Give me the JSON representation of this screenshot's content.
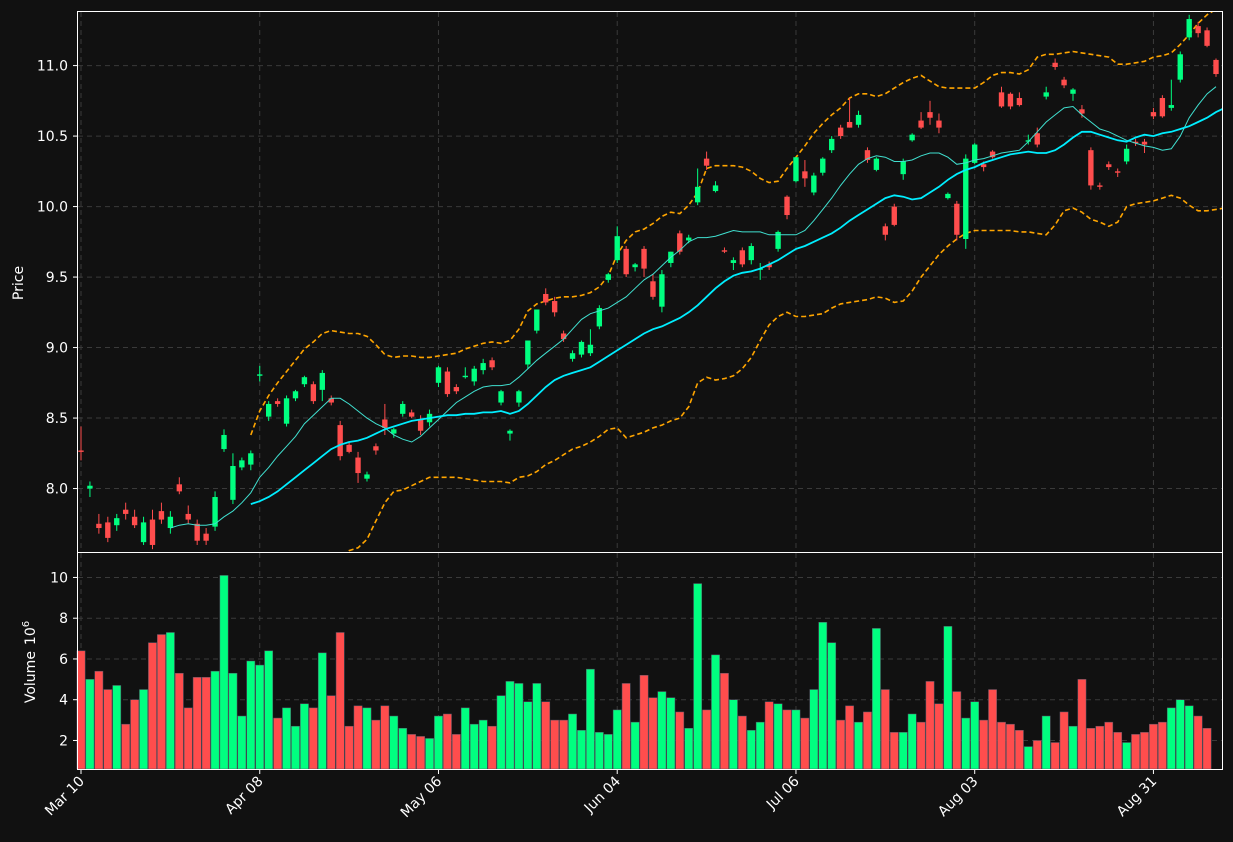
{
  "chart_data": {
    "type": "candlestick",
    "price_panel": {
      "ylabel": "Price",
      "ylim": [
        7.55,
        11.38
      ],
      "yticks": [
        8.0,
        8.5,
        9.0,
        9.5,
        10.0,
        10.5,
        11.0
      ],
      "ytick_labels": [
        "8.0",
        "8.5",
        "9.0",
        "9.5",
        "10.0",
        "10.5",
        "11.0"
      ],
      "grid": true
    },
    "volume_panel": {
      "ylabel": "Volume",
      "ylabel_exponent": "10",
      "ylabel_exponent_power": "6",
      "ylim": [
        0.6,
        11.2
      ],
      "yticks": [
        2,
        4,
        6,
        8,
        10
      ],
      "ytick_labels": [
        "2",
        "4",
        "6",
        "8",
        "10"
      ],
      "grid": true
    },
    "xtick_labels": [
      "Mar 10",
      "Apr 08",
      "May 06",
      "Jun 04",
      "Jul 06",
      "Aug 03",
      "Aug 31"
    ],
    "xtick_indices": [
      0,
      20,
      40,
      60,
      80,
      100,
      120
    ],
    "colors": {
      "up": "#00ff80",
      "down": "#ff4d4d",
      "sma_fast": "#40e0d0",
      "sma_slow": "#00eeff",
      "bollinger": "#ffa500",
      "background": "#111111",
      "text": "#ffffff"
    },
    "ohlc": [
      [
        8.27,
        8.44,
        8.2,
        8.26
      ],
      [
        8.0,
        8.05,
        7.94,
        8.02
      ],
      [
        7.75,
        7.82,
        7.68,
        7.72
      ],
      [
        7.76,
        7.8,
        7.62,
        7.65
      ],
      [
        7.74,
        7.82,
        7.7,
        7.79
      ],
      [
        7.85,
        7.9,
        7.78,
        7.82
      ],
      [
        7.8,
        7.85,
        7.72,
        7.74
      ],
      [
        7.62,
        7.8,
        7.6,
        7.76
      ],
      [
        7.78,
        7.85,
        7.57,
        7.6
      ],
      [
        7.84,
        7.9,
        7.75,
        7.78
      ],
      [
        7.72,
        7.84,
        7.68,
        7.8
      ],
      [
        8.03,
        8.08,
        7.96,
        7.98
      ],
      [
        7.82,
        7.88,
        7.75,
        7.78
      ],
      [
        7.75,
        7.78,
        7.6,
        7.63
      ],
      [
        7.68,
        7.72,
        7.6,
        7.63
      ],
      [
        7.73,
        7.98,
        7.7,
        7.94
      ],
      [
        8.28,
        8.42,
        8.26,
        8.38
      ],
      [
        7.92,
        8.25,
        7.89,
        8.16
      ],
      [
        8.15,
        8.22,
        8.13,
        8.2
      ],
      [
        8.17,
        8.27,
        8.13,
        8.25
      ],
      [
        8.8,
        8.87,
        8.76,
        8.81
      ],
      [
        8.51,
        8.62,
        8.48,
        8.6
      ],
      [
        8.62,
        8.64,
        8.58,
        8.6
      ],
      [
        8.46,
        8.66,
        8.44,
        8.64
      ],
      [
        8.64,
        8.7,
        8.62,
        8.69
      ],
      [
        8.74,
        8.8,
        8.72,
        8.79
      ],
      [
        8.74,
        8.76,
        8.6,
        8.62
      ],
      [
        8.7,
        8.84,
        8.62,
        8.82
      ],
      [
        8.64,
        8.66,
        8.59,
        8.61
      ],
      [
        8.45,
        8.48,
        8.2,
        8.23
      ],
      [
        8.31,
        8.33,
        8.25,
        8.26
      ],
      [
        8.22,
        8.26,
        8.04,
        8.11
      ],
      [
        8.07,
        8.12,
        8.05,
        8.1
      ],
      [
        8.3,
        8.32,
        8.24,
        8.27
      ],
      [
        8.49,
        8.6,
        8.38,
        8.43
      ],
      [
        8.39,
        8.43,
        8.36,
        8.42
      ],
      [
        8.53,
        8.62,
        8.51,
        8.6
      ],
      [
        8.54,
        8.56,
        8.5,
        8.51
      ],
      [
        8.49,
        8.52,
        8.38,
        8.41
      ],
      [
        8.47,
        8.56,
        8.44,
        8.53
      ],
      [
        8.75,
        8.87,
        8.72,
        8.86
      ],
      [
        8.83,
        8.86,
        8.65,
        8.67
      ],
      [
        8.72,
        8.74,
        8.67,
        8.69
      ],
      [
        8.79,
        8.86,
        8.78,
        8.8
      ],
      [
        8.76,
        8.87,
        8.73,
        8.85
      ],
      [
        8.84,
        8.92,
        8.81,
        8.89
      ],
      [
        8.91,
        8.93,
        8.84,
        8.86
      ],
      [
        8.61,
        8.7,
        8.59,
        8.69
      ],
      [
        8.39,
        8.42,
        8.34,
        8.41
      ],
      [
        8.61,
        8.7,
        8.58,
        8.69
      ],
      [
        8.88,
        9.05,
        8.85,
        9.05
      ],
      [
        9.12,
        9.27,
        9.1,
        9.27
      ],
      [
        9.38,
        9.42,
        9.3,
        9.32
      ],
      [
        9.33,
        9.36,
        9.22,
        9.25
      ],
      [
        9.1,
        9.12,
        9.04,
        9.06
      ],
      [
        8.92,
        8.98,
        8.9,
        8.96
      ],
      [
        8.95,
        9.05,
        8.93,
        9.04
      ],
      [
        8.96,
        9.13,
        8.94,
        9.02
      ],
      [
        9.15,
        9.3,
        9.13,
        9.28
      ],
      [
        9.48,
        9.53,
        9.46,
        9.52
      ],
      [
        9.62,
        9.86,
        9.6,
        9.79
      ],
      [
        9.7,
        9.72,
        9.5,
        9.52
      ],
      [
        9.57,
        9.6,
        9.54,
        9.59
      ],
      [
        9.7,
        9.72,
        9.5,
        9.56
      ],
      [
        9.47,
        9.52,
        9.34,
        9.36
      ],
      [
        9.29,
        9.55,
        9.25,
        9.52
      ],
      [
        9.6,
        9.68,
        9.57,
        9.68
      ],
      [
        9.81,
        9.83,
        9.66,
        9.68
      ],
      [
        9.76,
        9.8,
        9.74,
        9.78
      ],
      [
        10.03,
        10.27,
        10.01,
        10.14
      ],
      [
        10.34,
        10.39,
        10.26,
        10.29
      ],
      [
        10.11,
        10.18,
        10.1,
        10.15
      ],
      [
        9.69,
        9.71,
        9.67,
        9.68
      ],
      [
        9.6,
        9.64,
        9.55,
        9.62
      ],
      [
        9.69,
        9.71,
        9.57,
        9.59
      ],
      [
        9.62,
        9.74,
        9.59,
        9.72
      ],
      [
        9.56,
        9.6,
        9.48,
        9.56
      ],
      [
        9.59,
        9.61,
        9.55,
        9.57
      ],
      [
        9.7,
        9.83,
        9.68,
        9.82
      ],
      [
        10.07,
        10.08,
        9.91,
        9.94
      ],
      [
        10.18,
        10.35,
        10.17,
        10.35
      ],
      [
        10.25,
        10.33,
        10.14,
        10.2
      ],
      [
        10.1,
        10.24,
        10.08,
        10.22
      ],
      [
        10.24,
        10.35,
        10.22,
        10.34
      ],
      [
        10.4,
        10.5,
        10.38,
        10.48
      ],
      [
        10.56,
        10.58,
        10.48,
        10.5
      ],
      [
        10.6,
        10.77,
        10.56,
        10.56
      ],
      [
        10.58,
        10.68,
        10.56,
        10.65
      ],
      [
        10.4,
        10.42,
        10.31,
        10.33
      ],
      [
        10.26,
        10.35,
        10.25,
        10.34
      ],
      [
        9.86,
        9.88,
        9.76,
        9.8
      ],
      [
        10.0,
        10.02,
        9.86,
        9.87
      ],
      [
        10.23,
        10.34,
        10.19,
        10.32
      ],
      [
        10.47,
        10.52,
        10.46,
        10.51
      ],
      [
        10.61,
        10.67,
        10.55,
        10.56
      ],
      [
        10.67,
        10.75,
        10.58,
        10.63
      ],
      [
        10.61,
        10.66,
        10.52,
        10.56
      ],
      [
        10.06,
        10.1,
        10.05,
        10.09
      ],
      [
        10.02,
        10.04,
        9.76,
        9.8
      ],
      [
        9.77,
        10.37,
        9.7,
        10.34
      ],
      [
        10.31,
        10.45,
        10.3,
        10.44
      ],
      [
        10.3,
        10.32,
        10.25,
        10.28
      ],
      [
        10.39,
        10.4,
        10.34,
        10.35
      ],
      [
        10.81,
        10.85,
        10.7,
        10.71
      ],
      [
        10.8,
        10.81,
        10.69,
        10.71
      ],
      [
        10.77,
        10.81,
        10.71,
        10.72
      ],
      [
        10.46,
        10.51,
        10.44,
        10.47
      ],
      [
        10.52,
        10.56,
        10.42,
        10.44
      ],
      [
        10.78,
        10.85,
        10.76,
        10.81
      ],
      [
        11.02,
        11.05,
        10.97,
        10.99
      ],
      [
        10.9,
        10.92,
        10.84,
        10.86
      ],
      [
        10.8,
        10.84,
        10.75,
        10.83
      ],
      [
        10.69,
        10.72,
        10.63,
        10.66
      ],
      [
        10.4,
        10.42,
        10.12,
        10.15
      ],
      [
        10.15,
        10.17,
        10.12,
        10.14
      ],
      [
        10.3,
        10.32,
        10.26,
        10.28
      ],
      [
        10.25,
        10.27,
        10.21,
        10.24
      ],
      [
        10.32,
        10.44,
        10.3,
        10.41
      ],
      [
        10.46,
        10.48,
        10.43,
        10.45
      ],
      [
        10.46,
        10.48,
        10.38,
        10.44
      ],
      [
        10.67,
        10.7,
        10.62,
        10.64
      ],
      [
        10.77,
        10.79,
        10.63,
        10.64
      ],
      [
        10.7,
        10.9,
        10.68,
        10.72
      ],
      [
        10.9,
        11.1,
        10.88,
        11.08
      ],
      [
        11.2,
        11.36,
        11.18,
        11.33
      ],
      [
        11.28,
        11.31,
        11.2,
        11.23
      ],
      [
        11.25,
        11.27,
        11.13,
        11.14
      ],
      [
        11.04,
        11.05,
        10.92,
        10.94
      ]
    ],
    "volume": [
      6.4,
      5.0,
      5.4,
      4.5,
      4.7,
      2.8,
      4.0,
      4.5,
      6.8,
      7.2,
      7.3,
      5.3,
      3.6,
      5.1,
      5.1,
      5.4,
      10.1,
      5.3,
      3.2,
      5.9,
      5.7,
      6.4,
      3.1,
      3.6,
      2.7,
      3.8,
      3.6,
      6.3,
      4.2,
      7.3,
      2.7,
      3.7,
      3.6,
      3.0,
      3.7,
      3.2,
      2.6,
      2.3,
      2.2,
      2.1,
      3.2,
      3.3,
      2.3,
      3.6,
      2.8,
      3.0,
      2.7,
      4.2,
      4.9,
      4.8,
      3.9,
      4.8,
      3.9,
      3.0,
      3.0,
      3.3,
      2.5,
      5.5,
      2.4,
      2.3,
      3.5,
      4.8,
      2.9,
      5.2,
      4.1,
      4.4,
      4.1,
      3.4,
      2.6,
      9.7,
      3.5,
      6.2,
      5.3,
      4.0,
      3.2,
      2.5,
      2.9,
      3.9,
      3.8,
      3.5,
      3.5,
      3.1,
      4.5,
      7.8,
      6.8,
      3.0,
      3.7,
      2.9,
      3.4,
      7.5,
      4.5,
      2.4,
      2.4,
      3.3,
      2.9,
      4.9,
      3.8,
      7.6,
      4.4,
      3.1,
      3.9,
      3.0,
      4.5,
      2.9,
      2.8,
      2.5,
      1.7,
      2.0,
      3.2,
      1.9,
      3.4,
      2.7,
      5.0,
      2.6,
      2.7,
      2.9,
      2.4,
      1.9,
      2.3,
      2.4,
      2.8,
      2.9,
      3.6,
      4.0,
      3.7,
      3.2,
      2.6
    ],
    "sma_fast": [
      null,
      null,
      null,
      null,
      null,
      null,
      null,
      null,
      null,
      null,
      7.72,
      7.74,
      7.75,
      7.74,
      7.74,
      7.75,
      7.8,
      7.84,
      7.9,
      7.97,
      8.08,
      8.15,
      8.23,
      8.3,
      8.37,
      8.46,
      8.52,
      8.58,
      8.64,
      8.64,
      8.6,
      8.55,
      8.5,
      8.46,
      8.43,
      8.38,
      8.35,
      8.33,
      8.37,
      8.43,
      8.49,
      8.55,
      8.61,
      8.65,
      8.69,
      8.72,
      8.73,
      8.73,
      8.74,
      8.79,
      8.85,
      8.91,
      8.96,
      9.01,
      9.06,
      9.13,
      9.2,
      9.24,
      9.26,
      9.28,
      9.32,
      9.36,
      9.42,
      9.48,
      9.52,
      9.58,
      9.64,
      9.69,
      9.75,
      9.78,
      9.78,
      9.79,
      9.81,
      9.83,
      9.82,
      9.82,
      9.82,
      9.8,
      9.8,
      9.8,
      9.8,
      9.83,
      9.9,
      9.98,
      10.06,
      10.15,
      10.23,
      10.3,
      10.34,
      10.36,
      10.35,
      10.32,
      10.32,
      10.33,
      10.36,
      10.38,
      10.38,
      10.35,
      10.3,
      10.31,
      10.33,
      10.34,
      10.36,
      10.38,
      10.39,
      10.4,
      10.46,
      10.53,
      10.6,
      10.65,
      10.7,
      10.71,
      10.65,
      10.6,
      10.55,
      10.53,
      10.5,
      10.47,
      10.45,
      10.43,
      10.42,
      10.4,
      10.41,
      10.5,
      10.63,
      10.72,
      10.8,
      10.85
    ],
    "sma_slow": [
      null,
      null,
      null,
      null,
      null,
      null,
      null,
      null,
      null,
      null,
      null,
      null,
      null,
      null,
      null,
      null,
      null,
      null,
      null,
      7.89,
      7.91,
      7.94,
      7.98,
      8.03,
      8.08,
      8.13,
      8.18,
      8.23,
      8.28,
      8.31,
      8.33,
      8.34,
      8.36,
      8.39,
      8.42,
      8.44,
      8.46,
      8.48,
      8.49,
      8.5,
      8.51,
      8.52,
      8.52,
      8.53,
      8.53,
      8.54,
      8.54,
      8.55,
      8.53,
      8.55,
      8.6,
      8.66,
      8.72,
      8.77,
      8.8,
      8.82,
      8.84,
      8.86,
      8.9,
      8.94,
      8.98,
      9.02,
      9.06,
      9.1,
      9.13,
      9.15,
      9.18,
      9.21,
      9.25,
      9.3,
      9.36,
      9.42,
      9.47,
      9.51,
      9.53,
      9.54,
      9.56,
      9.59,
      9.62,
      9.66,
      9.7,
      9.72,
      9.75,
      9.78,
      9.81,
      9.85,
      9.9,
      9.94,
      9.98,
      10.02,
      10.06,
      10.08,
      10.07,
      10.05,
      10.06,
      10.1,
      10.14,
      10.19,
      10.23,
      10.26,
      10.28,
      10.31,
      10.33,
      10.35,
      10.37,
      10.38,
      10.39,
      10.38,
      10.38,
      10.4,
      10.44,
      10.49,
      10.53,
      10.53,
      10.51,
      10.49,
      10.47,
      10.46,
      10.49,
      10.51,
      10.5,
      10.52,
      10.53,
      10.55,
      10.57,
      10.6,
      10.63,
      10.67,
      10.7
    ],
    "bollinger_upper": [
      null,
      null,
      null,
      null,
      null,
      null,
      null,
      null,
      null,
      null,
      null,
      null,
      null,
      null,
      null,
      null,
      null,
      null,
      null,
      8.38,
      8.55,
      8.66,
      8.75,
      8.83,
      8.91,
      8.99,
      9.04,
      9.1,
      9.12,
      9.11,
      9.1,
      9.1,
      9.08,
      9.02,
      8.95,
      8.93,
      8.94,
      8.94,
      8.93,
      8.93,
      8.94,
      8.95,
      8.96,
      8.99,
      9.01,
      9.03,
      9.04,
      9.03,
      9.05,
      9.13,
      9.26,
      9.31,
      9.33,
      9.35,
      9.36,
      9.36,
      9.37,
      9.39,
      9.43,
      9.51,
      9.66,
      9.76,
      9.82,
      9.84,
      9.88,
      9.93,
      9.96,
      9.95,
      10.01,
      10.1,
      10.27,
      10.29,
      10.29,
      10.29,
      10.28,
      10.25,
      10.2,
      10.17,
      10.18,
      10.27,
      10.35,
      10.43,
      10.52,
      10.59,
      10.65,
      10.7,
      10.77,
      10.8,
      10.8,
      10.78,
      10.8,
      10.84,
      10.88,
      10.91,
      10.93,
      10.89,
      10.85,
      10.84,
      10.84,
      10.84,
      10.84,
      10.88,
      10.93,
      10.95,
      10.95,
      10.94,
      10.97,
      11.06,
      11.08,
      11.08,
      11.09,
      11.1,
      11.09,
      11.08,
      11.07,
      11.06,
      11.01,
      11.01,
      11.02,
      11.03,
      11.06,
      11.07,
      11.09,
      11.15,
      11.22,
      11.3,
      11.36,
      11.4,
      11.42
    ],
    "bollinger_lower": [
      null,
      null,
      null,
      null,
      null,
      null,
      null,
      null,
      null,
      null,
      null,
      null,
      null,
      null,
      null,
      null,
      null,
      null,
      null,
      7.22,
      7.27,
      7.23,
      7.21,
      7.23,
      7.25,
      7.27,
      7.31,
      7.36,
      7.44,
      7.51,
      7.56,
      7.58,
      7.64,
      7.77,
      7.9,
      7.98,
      7.99,
      8.02,
      8.05,
      8.08,
      8.08,
      8.08,
      8.08,
      8.07,
      8.06,
      8.05,
      8.05,
      8.05,
      8.04,
      8.08,
      8.09,
      8.12,
      8.17,
      8.2,
      8.24,
      8.28,
      8.3,
      8.33,
      8.37,
      8.42,
      8.43,
      8.36,
      8.38,
      8.4,
      8.43,
      8.45,
      8.48,
      8.5,
      8.58,
      8.75,
      8.79,
      8.77,
      8.78,
      8.8,
      8.85,
      8.93,
      9.05,
      9.16,
      9.22,
      9.25,
      9.22,
      9.22,
      9.23,
      9.24,
      9.28,
      9.31,
      9.32,
      9.33,
      9.34,
      9.36,
      9.35,
      9.32,
      9.33,
      9.4,
      9.5,
      9.58,
      9.66,
      9.72,
      9.77,
      9.81,
      9.83,
      9.83,
      9.83,
      9.83,
      9.83,
      9.82,
      9.82,
      9.81,
      9.8,
      9.87,
      9.97,
      9.99,
      9.96,
      9.91,
      9.89,
      9.86,
      9.89,
      10.0,
      10.02,
      10.03,
      10.04,
      10.06,
      10.08,
      10.06,
      10.01,
      9.97,
      9.97,
      9.98,
      9.99
    ]
  }
}
